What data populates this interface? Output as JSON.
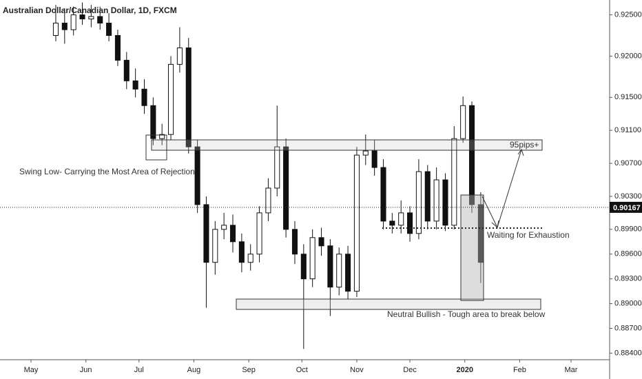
{
  "chart_data": {
    "type": "candlestick",
    "title": "Australian Dollar/Canadian Dollar, 1D, FXCM",
    "x": [
      14,
      19,
      24,
      29,
      34,
      39,
      44,
      49,
      54,
      59,
      64,
      69,
      74,
      79,
      84,
      89,
      94,
      99,
      104,
      109,
      114,
      119,
      124,
      129,
      134,
      139,
      144,
      149,
      154,
      159,
      164,
      169,
      174,
      179,
      184,
      189,
      194,
      199,
      204,
      209,
      214,
      219,
      224,
      229,
      234,
      239,
      244,
      249,
      254
    ],
    "open": [
      0.9225,
      0.924,
      0.9232,
      0.925,
      0.9245,
      0.9248,
      0.924,
      0.9225,
      0.9195,
      0.917,
      0.916,
      0.914,
      0.91,
      0.9105,
      0.919,
      0.921,
      0.909,
      0.902,
      0.895,
      0.899,
      0.8995,
      0.8975,
      0.895,
      0.896,
      0.901,
      0.904,
      0.909,
      0.899,
      0.896,
      0.893,
      0.898,
      0.897,
      0.892,
      0.896,
      0.8915,
      0.908,
      0.9085,
      0.9065,
      0.9,
      0.8995,
      0.901,
      0.8985,
      0.906,
      0.9,
      0.905,
      0.8995,
      0.91,
      0.914,
      0.902
    ],
    "high": [
      0.9262,
      0.9258,
      0.926,
      0.9265,
      0.9262,
      0.926,
      0.9252,
      0.9232,
      0.9205,
      0.9185,
      0.9172,
      0.915,
      0.9118,
      0.92,
      0.9235,
      0.9222,
      0.9098,
      0.903,
      0.9,
      0.901,
      0.9008,
      0.8985,
      0.8972,
      0.9018,
      0.9052,
      0.914,
      0.91,
      0.9,
      0.8972,
      0.899,
      0.8992,
      0.8978,
      0.8968,
      0.897,
      0.909,
      0.9105,
      0.9098,
      0.9075,
      0.901,
      0.9025,
      0.9018,
      0.9075,
      0.9068,
      0.9065,
      0.9058,
      0.9115,
      0.9151,
      0.9145,
      0.9035
    ],
    "low": [
      0.9218,
      0.9215,
      0.9225,
      0.9238,
      0.9235,
      0.9232,
      0.9218,
      0.9188,
      0.916,
      0.915,
      0.913,
      0.9092,
      0.9092,
      0.9098,
      0.918,
      0.9082,
      0.901,
      0.8895,
      0.8935,
      0.8978,
      0.8962,
      0.8938,
      0.894,
      0.895,
      0.9,
      0.903,
      0.898,
      0.8948,
      0.8845,
      0.892,
      0.8958,
      0.8885,
      0.891,
      0.8905,
      0.8908,
      0.9068,
      0.9055,
      0.899,
      0.8985,
      0.8985,
      0.8975,
      0.8978,
      0.899,
      0.899,
      0.8988,
      0.899,
      0.9095,
      0.901,
      0.8925
    ],
    "close": [
      0.924,
      0.9232,
      0.925,
      0.9245,
      0.9248,
      0.924,
      0.9225,
      0.9195,
      0.917,
      0.916,
      0.914,
      0.91,
      0.9105,
      0.919,
      0.921,
      0.909,
      0.902,
      0.895,
      0.899,
      0.8995,
      0.8975,
      0.895,
      0.896,
      0.901,
      0.904,
      0.909,
      0.899,
      0.896,
      0.893,
      0.898,
      0.897,
      0.892,
      0.896,
      0.8915,
      0.908,
      0.9085,
      0.9065,
      0.9,
      0.8995,
      0.901,
      0.8985,
      0.906,
      0.9,
      0.905,
      0.8995,
      0.91,
      0.914,
      0.902,
      0.895
    ],
    "xlim": [
      -17.5,
      326.8
    ],
    "xticks": [
      {
        "value": 0,
        "label": "May"
      },
      {
        "value": 31,
        "label": "Jun"
      },
      {
        "value": 61,
        "label": "Jul"
      },
      {
        "value": 92,
        "label": "Aug"
      },
      {
        "value": 123,
        "label": "Sep"
      },
      {
        "value": 153,
        "label": "Oct"
      },
      {
        "value": 184,
        "label": "Nov"
      },
      {
        "value": 214,
        "label": "Dec"
      },
      {
        "value": 245,
        "label": "2020"
      },
      {
        "value": 276,
        "label": "Feb"
      },
      {
        "value": 305,
        "label": "Mar"
      }
    ],
    "ylim": [
      0.8832,
      0.9268
    ],
    "yticks": [
      {
        "value": 0.925,
        "label": "0.92500"
      },
      {
        "value": 0.92,
        "label": "0.92000"
      },
      {
        "value": 0.915,
        "label": "0.91500"
      },
      {
        "value": 0.911,
        "label": "0.91100"
      },
      {
        "value": 0.907,
        "label": "0.90700"
      },
      {
        "value": 0.903,
        "label": "0.90300"
      },
      {
        "value": 0.899,
        "label": "0.89900"
      },
      {
        "value": 0.896,
        "label": "0.89600"
      },
      {
        "value": 0.893,
        "label": "0.89300"
      },
      {
        "value": 0.89,
        "label": "0.89000"
      },
      {
        "value": 0.887,
        "label": "0.88700"
      },
      {
        "value": 0.884,
        "label": "0.88400"
      }
    ],
    "current_price": 0.90167,
    "annotations": [
      "Swing Low- Carrying the Most Area of Rejection",
      "95pips+",
      "Waiting for Exhaustion",
      "Neutral Bullish - Tough area to break below"
    ]
  }
}
